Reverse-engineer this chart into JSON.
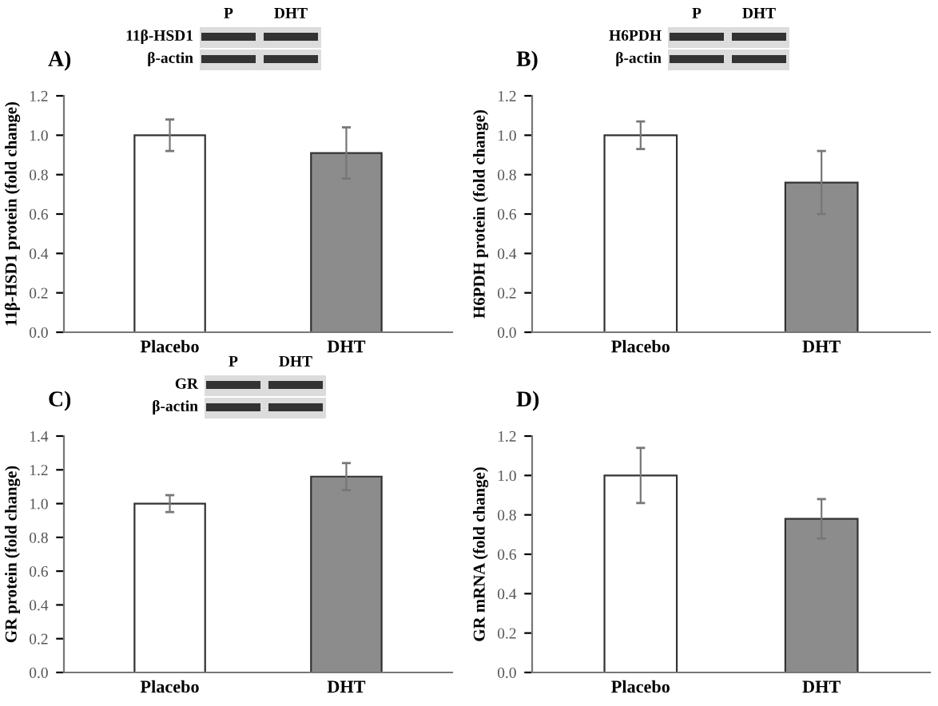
{
  "chart_data": [
    {
      "type": "bar",
      "title": "A)",
      "ylabel": "11β-HSD1 protein (fold change)",
      "categories": [
        "Placebo",
        "DHT"
      ],
      "values": [
        1.0,
        0.91
      ],
      "errors": [
        0.08,
        0.13
      ],
      "colors": [
        "#ffffff",
        "#8c8c8c"
      ],
      "ylim": [
        0,
        1.2
      ],
      "yticks": [
        {
          "value": 0,
          "label": "0.0"
        },
        {
          "value": 0.2,
          "label": "0.2"
        },
        {
          "value": 0.4,
          "label": "0.4"
        },
        {
          "value": 0.6,
          "label": "0.6"
        },
        {
          "value": 0.8,
          "label": "0.8"
        },
        {
          "value": 1.0,
          "label": "1.0"
        },
        {
          "value": 1.2,
          "label": "1.2"
        }
      ],
      "annotations": [
        "P",
        "DHT",
        "11β-HSD1",
        "β-actin"
      ]
    },
    {
      "type": "bar",
      "title": "B)",
      "ylabel": "H6PDH protein (fold change)",
      "categories": [
        "Placebo",
        "DHT"
      ],
      "values": [
        1.0,
        0.76
      ],
      "errors": [
        0.07,
        0.16
      ],
      "colors": [
        "#ffffff",
        "#8c8c8c"
      ],
      "ylim": [
        0,
        1.2
      ],
      "yticks": [
        {
          "value": 0,
          "label": "0.0"
        },
        {
          "value": 0.2,
          "label": "0.2"
        },
        {
          "value": 0.4,
          "label": "0.4"
        },
        {
          "value": 0.6,
          "label": "0.6"
        },
        {
          "value": 0.8,
          "label": "0.8"
        },
        {
          "value": 1.0,
          "label": "1.0"
        },
        {
          "value": 1.2,
          "label": "1.2"
        }
      ],
      "annotations": [
        "P",
        "DHT",
        "H6PDH",
        "β-actin"
      ]
    },
    {
      "type": "bar",
      "title": "C)",
      "ylabel": "GR protein (fold change)",
      "categories": [
        "Placebo",
        "DHT"
      ],
      "values": [
        1.0,
        1.16
      ],
      "errors": [
        0.05,
        0.08
      ],
      "colors": [
        "#ffffff",
        "#8c8c8c"
      ],
      "ylim": [
        0,
        1.4
      ],
      "yticks": [
        {
          "value": 0,
          "label": "0.0"
        },
        {
          "value": 0.2,
          "label": "0.2"
        },
        {
          "value": 0.4,
          "label": "0.4"
        },
        {
          "value": 0.6,
          "label": "0.6"
        },
        {
          "value": 0.8,
          "label": "0.8"
        },
        {
          "value": 1.0,
          "label": "1.0"
        },
        {
          "value": 1.2,
          "label": "1.2"
        },
        {
          "value": 1.4,
          "label": "1.4"
        }
      ],
      "annotations": [
        "P",
        "DHT",
        "GR",
        "β-actin"
      ]
    },
    {
      "type": "bar",
      "title": "D)",
      "ylabel": "GR mRNA (fold change)",
      "categories": [
        "Placebo",
        "DHT"
      ],
      "values": [
        1.0,
        0.78
      ],
      "errors": [
        0.14,
        0.1
      ],
      "colors": [
        "#ffffff",
        "#8c8c8c"
      ],
      "ylim": [
        0,
        1.2
      ],
      "yticks": [
        {
          "value": 0,
          "label": "0.0"
        },
        {
          "value": 0.2,
          "label": "0.2"
        },
        {
          "value": 0.4,
          "label": "0.4"
        },
        {
          "value": 0.6,
          "label": "0.6"
        },
        {
          "value": 0.8,
          "label": "0.8"
        },
        {
          "value": 1.0,
          "label": "1.0"
        },
        {
          "value": 1.2,
          "label": "1.2"
        }
      ]
    }
  ]
}
